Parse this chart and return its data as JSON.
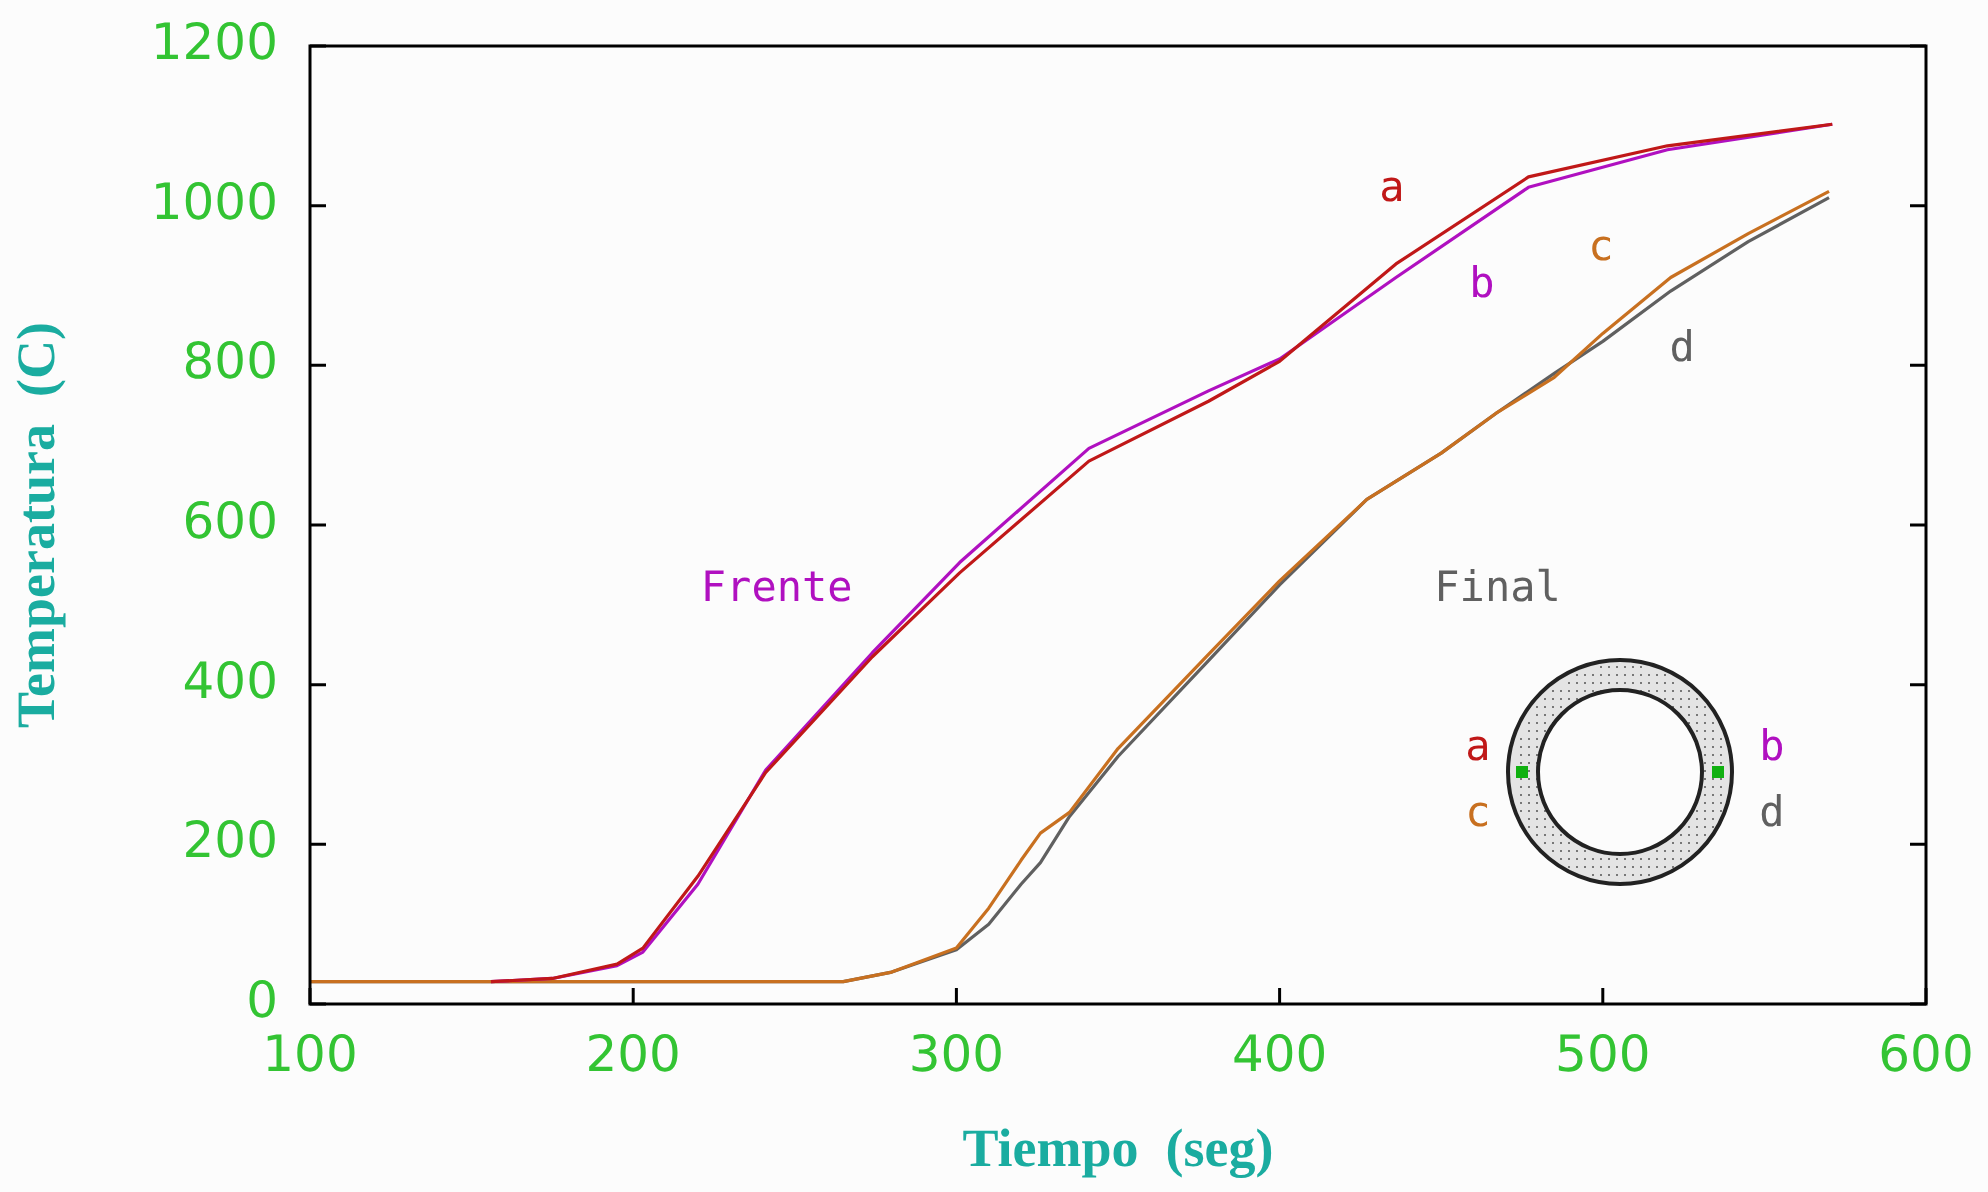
{
  "chart_data": {
    "type": "line",
    "xlabel": "Tiempo  (seg)",
    "ylabel": "Temperatura  (C)",
    "xlim": [
      100,
      600
    ],
    "xticks": [
      100,
      200,
      300,
      400,
      500,
      600
    ],
    "ylim": [
      0,
      1200
    ],
    "yticks": [
      0,
      200,
      400,
      600,
      800,
      1000,
      1200
    ],
    "grid": false,
    "legend": false,
    "marker": "none",
    "line_style": "solid",
    "series": [
      {
        "name": "a",
        "color": "#c01818",
        "x": [
          156,
          175,
          195,
          203,
          220,
          241,
          274,
          301,
          341,
          378,
          400,
          436,
          477,
          520,
          571
        ],
        "values": [
          28,
          32,
          50,
          70,
          160,
          290,
          435,
          540,
          680,
          755,
          805,
          927,
          1036,
          1075,
          1102
        ]
      },
      {
        "name": "b",
        "color": "#b010c0",
        "x": [
          156,
          175,
          195,
          203,
          220,
          241,
          274,
          301,
          341,
          378,
          400,
          436,
          477,
          520,
          571
        ],
        "values": [
          28,
          32,
          48,
          65,
          150,
          293,
          440,
          553,
          696,
          768,
          808,
          910,
          1023,
          1070,
          1102
        ]
      },
      {
        "name": "c",
        "color": "#c87020",
        "x": [
          100,
          265,
          280,
          300,
          310,
          320,
          326,
          335,
          350,
          378,
          400,
          427,
          450,
          467,
          485,
          500,
          521,
          545,
          570
        ],
        "values": [
          28,
          28,
          40,
          70,
          120,
          180,
          214,
          240,
          320,
          438,
          530,
          632,
          690,
          740,
          785,
          840,
          910,
          965,
          1018
        ]
      },
      {
        "name": "d",
        "color": "#606060",
        "x": [
          100,
          265,
          280,
          300,
          310,
          320,
          326,
          335,
          350,
          378,
          400,
          427,
          450,
          467,
          485,
          500,
          521,
          545,
          570
        ],
        "values": [
          28,
          28,
          40,
          68,
          100,
          150,
          177,
          235,
          310,
          430,
          525,
          632,
          690,
          740,
          790,
          830,
          893,
          955,
          1010
        ]
      }
    ],
    "annotations": [
      "Frente",
      "Final"
    ]
  }
}
